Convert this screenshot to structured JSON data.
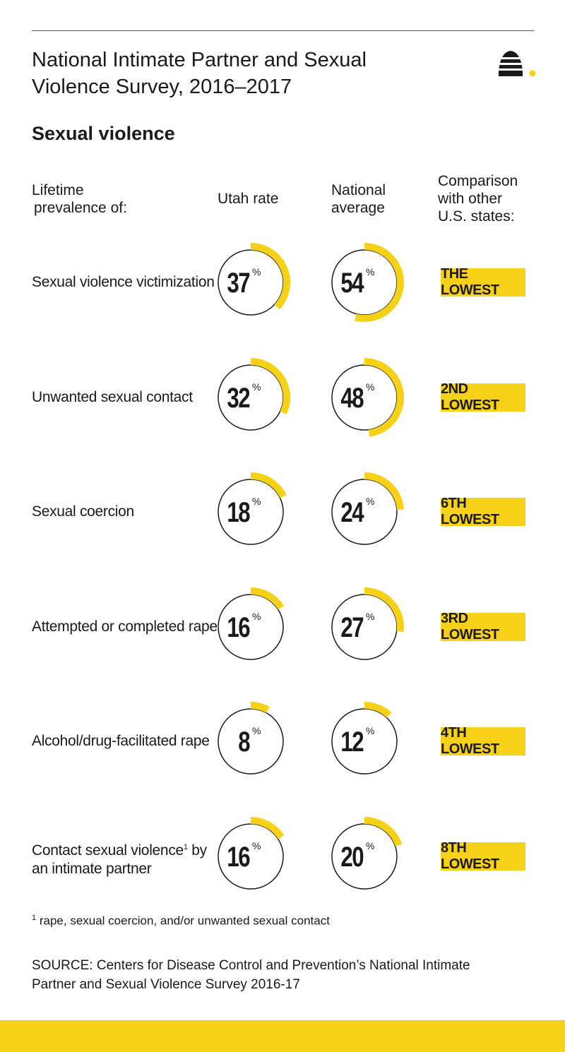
{
  "header": {
    "title_line1": "National Intimate Partner and Sexual",
    "title_line2": "Violence Survey, 2016–2017",
    "subtitle": "Sexual violence",
    "col_label_line1": "Lifetime",
    "col_label_line2": "prevalence  of:",
    "col_utah": "Utah rate",
    "col_nat_line1": "National",
    "col_nat_line2": "average",
    "col_comp_line1": "Comparison",
    "col_comp_line2": "with other",
    "col_comp_line3": "U.S. states:"
  },
  "colors": {
    "accent": "#f7d117",
    "ring": "#1a1a1a",
    "text": "#1a1a1a"
  },
  "chart_data": {
    "type": "table",
    "columns": [
      "Lifetime prevalence of:",
      "Utah rate",
      "National average",
      "Comparison with other U.S. states:"
    ],
    "unit": "%",
    "rows": [
      {
        "label": "Sexual violence victimization",
        "footnote_mark": "",
        "label_line2": "",
        "utah": 37,
        "national": 54,
        "comparison": "THE LOWEST"
      },
      {
        "label": "Unwanted sexual contact",
        "footnote_mark": "",
        "label_line2": "",
        "utah": 32,
        "national": 48,
        "comparison": "2ND LOWEST"
      },
      {
        "label": "Sexual coercion",
        "footnote_mark": "",
        "label_line2": "",
        "utah": 18,
        "national": 24,
        "comparison": "6TH LOWEST"
      },
      {
        "label": "Attempted or completed rape",
        "footnote_mark": "",
        "label_line2": "",
        "utah": 16,
        "national": 27,
        "comparison": "3RD LOWEST"
      },
      {
        "label": "Alcohol/drug-facilitated rape",
        "footnote_mark": "",
        "label_line2": "",
        "utah": 8,
        "national": 12,
        "comparison": "4TH LOWEST"
      },
      {
        "label": "Contact sexual violence",
        "footnote_mark": "1",
        "label_line2": "an intimate partner",
        "label_suffix": " by",
        "utah": 16,
        "national": 20,
        "comparison": "8TH LOWEST"
      }
    ]
  },
  "footnote": {
    "mark": "1",
    "text": " rape, sexual coercion, and/or unwanted sexual contact"
  },
  "source": {
    "line1": "SOURCE: Centers for Disease Control and Prevention’s National Intimate",
    "line2": "Partner and Sexual Violence Survey 2016-17"
  },
  "icons": {
    "logo": "beehive-icon"
  }
}
